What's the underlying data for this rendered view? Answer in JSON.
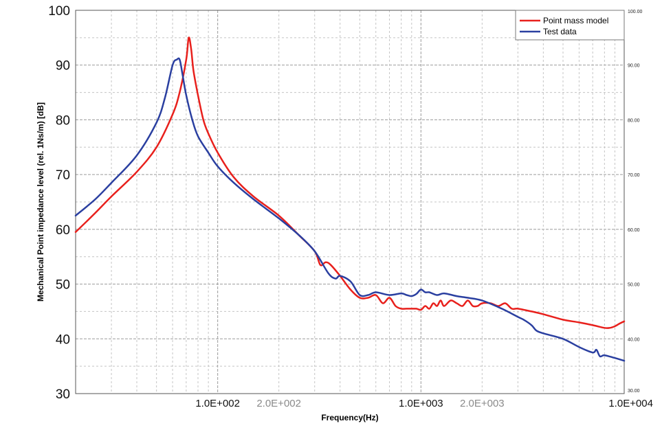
{
  "chart_data": {
    "type": "line",
    "title": "",
    "xlabel": "Frequency(Hz)",
    "ylabel": "Mechanical Point impedance level (rel. 1Ns/m) [dB]",
    "x_scale": "log",
    "xlim": [
      20,
      10000
    ],
    "ylim": [
      30,
      100
    ],
    "grid": true,
    "legend_position": "top-right",
    "y_ticks_left": [
      "30",
      "40",
      "50",
      "60",
      "70",
      "80",
      "90",
      "100"
    ],
    "y_ticks_right": [
      "30.00",
      "40.00",
      "50.00",
      "60.00",
      "70.00",
      "80.00",
      "90.00",
      "100.00"
    ],
    "x_ticks": [
      {
        "value": 100,
        "label": "1.0E+002",
        "emphasis": "major"
      },
      {
        "value": 200,
        "label": "2.0E+002",
        "emphasis": "minor"
      },
      {
        "value": 1000,
        "label": "1.0E+003",
        "emphasis": "major"
      },
      {
        "value": 2000,
        "label": "2.0E+003",
        "emphasis": "minor"
      },
      {
        "value": 10000,
        "label": "1.0E+004",
        "emphasis": "major"
      }
    ],
    "series": [
      {
        "name": "Point mass model",
        "color": "#e8201c",
        "x": [
          20,
          25,
          30,
          40,
          50,
          60,
          65,
          70,
          72,
          74,
          76,
          80,
          85,
          90,
          100,
          120,
          150,
          200,
          250,
          300,
          320,
          340,
          360,
          400,
          450,
          500,
          550,
          600,
          650,
          700,
          750,
          800,
          850,
          900,
          950,
          1000,
          1050,
          1100,
          1150,
          1200,
          1250,
          1300,
          1400,
          1500,
          1600,
          1700,
          1800,
          1900,
          2000,
          2200,
          2400,
          2600,
          2800,
          3000,
          3500,
          4000,
          5000,
          6000,
          7000,
          8000,
          8500,
          9000,
          9500,
          10000
        ],
        "y": [
          59.5,
          63,
          66,
          70.5,
          75,
          81,
          85,
          91,
          95,
          93,
          89,
          84.5,
          80,
          77.5,
          74,
          69.5,
          66,
          62.5,
          59,
          56,
          53.5,
          54,
          53.5,
          51.5,
          49,
          47.5,
          47.5,
          48,
          46.5,
          47.5,
          46,
          45.5,
          45.5,
          45.5,
          45.5,
          45.3,
          46,
          45.5,
          46.5,
          46,
          47,
          46,
          47,
          46.5,
          46,
          47,
          46,
          46,
          46.5,
          46.5,
          46,
          46.5,
          45.5,
          45.5,
          45,
          44.5,
          43.5,
          43,
          42.5,
          42,
          42,
          42.3,
          42.8,
          43.2
        ]
      },
      {
        "name": "Test data",
        "color": "#2a3fa0",
        "x": [
          20,
          25,
          30,
          40,
          50,
          55,
          60,
          63,
          65,
          67,
          70,
          75,
          80,
          90,
          100,
          120,
          150,
          200,
          250,
          300,
          350,
          380,
          400,
          450,
          500,
          550,
          600,
          700,
          800,
          850,
          900,
          950,
          1000,
          1050,
          1100,
          1200,
          1300,
          1500,
          1700,
          2000,
          2500,
          3000,
          3200,
          3500,
          3700,
          4000,
          5000,
          6000,
          7000,
          7300,
          7600,
          8000,
          9000,
          10000
        ],
        "y": [
          62.5,
          65.5,
          68.5,
          73.5,
          79.5,
          84,
          90,
          91,
          91,
          88.5,
          84.5,
          80,
          77,
          74,
          71.5,
          68.5,
          65.5,
          62,
          59,
          56,
          52,
          51,
          51.5,
          50.5,
          48,
          48,
          48.5,
          48,
          48.3,
          48,
          47.8,
          48.2,
          49,
          48.5,
          48.5,
          48,
          48.3,
          47.8,
          47.5,
          47,
          45.5,
          44,
          43.5,
          42.5,
          41.5,
          41,
          40,
          38.5,
          37.5,
          38,
          36.8,
          37,
          36.5,
          36
        ]
      }
    ]
  }
}
